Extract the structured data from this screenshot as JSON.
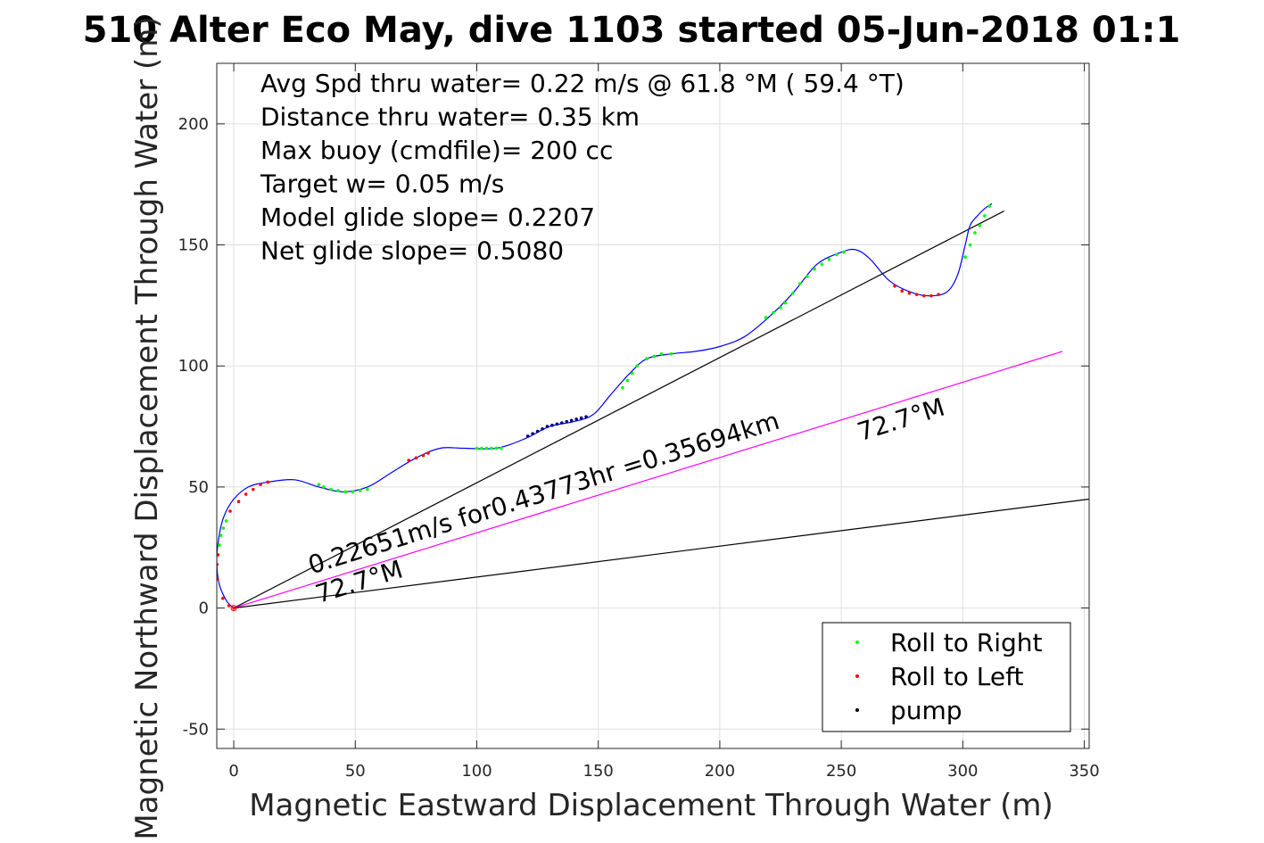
{
  "chart_data": {
    "type": "line",
    "title": "510 Alter Eco May, dive 1103 started 05-Jun-2018 01:1",
    "xlabel": "Magnetic Eastward Displacement Through Water (m)",
    "ylabel": "Magnetic Northward Displacement Through Water (m)",
    "xlim": [
      -7,
      352
    ],
    "ylim": [
      -58,
      225
    ],
    "xticks": [
      0,
      50,
      100,
      150,
      200,
      250,
      300,
      350
    ],
    "yticks": [
      -50,
      0,
      50,
      100,
      150,
      200
    ],
    "grid": true,
    "legend_position": "bottom-right",
    "colors": {
      "track": "#0000ff",
      "roll_right": "#00ff00",
      "roll_left": "#ff0000",
      "pump": "#000080",
      "reference_lines": "#000000",
      "heading_line": "#ff00ff"
    },
    "annotations": [
      "Avg Spd thru water=  0.22 m/s @  61.8 °M ( 59.4 °T)",
      "Distance thru water=  0.35 km",
      "Max buoy (cmdfile)= 200 cc",
      "Target w= 0.05 m/s",
      "Model glide slope= 0.2207",
      "Net glide slope= 0.5080"
    ],
    "line_labels": [
      {
        "text": "0.22651m/s for0.43773hr =0.35694km",
        "x": 32,
        "y": 14,
        "angle_deg": 17.3
      },
      {
        "text": "72.7°M",
        "x": 35,
        "y": 2,
        "angle_deg": 17.3
      },
      {
        "text": "72.7°M",
        "x": 258,
        "y": 69,
        "angle_deg": 17.3
      }
    ],
    "reference_lines": [
      {
        "name": "net track line",
        "x": [
          0,
          317
        ],
        "y": [
          0,
          164
        ]
      },
      {
        "name": "heading line",
        "x": [
          0,
          341
        ],
        "y": [
          0,
          106
        ]
      },
      {
        "name": "glide slope line",
        "x": [
          0,
          352
        ],
        "y": [
          0,
          45
        ]
      }
    ],
    "track": {
      "x": [
        0,
        -3,
        -6,
        -7,
        -6,
        -4,
        0,
        6,
        14,
        25,
        35,
        45,
        55,
        65,
        75,
        85,
        95,
        108,
        120,
        130,
        140,
        148,
        155,
        163,
        170,
        180,
        190,
        200,
        210,
        220,
        230,
        240,
        250,
        256,
        262,
        270,
        280,
        288,
        294,
        298,
        301,
        303,
        306,
        309,
        312
      ],
      "y": [
        0,
        3,
        10,
        20,
        30,
        38,
        45,
        50,
        52,
        53,
        50,
        48,
        50,
        56,
        62,
        66,
        66,
        66,
        70,
        75,
        77,
        80,
        88,
        97,
        103,
        105,
        106,
        108,
        112,
        120,
        130,
        142,
        147,
        148,
        144,
        135,
        130,
        129,
        131,
        138,
        150,
        158,
        162,
        165,
        167
      ]
    },
    "series": [
      {
        "name": "Roll to Right",
        "marker_color": "#00ff00",
        "x": [
          -5.9,
          -5.3,
          -4.3,
          -3.1,
          35,
          37,
          40,
          43,
          46,
          49,
          52,
          55,
          100,
          102,
          104,
          106,
          108,
          110,
          160,
          162,
          164,
          166,
          170,
          173,
          176,
          180,
          219,
          222,
          225,
          227,
          230,
          233,
          236,
          239,
          242,
          245,
          248,
          251,
          301,
          303,
          305,
          307,
          309,
          311
        ],
        "y": [
          26,
          30,
          33,
          36,
          51,
          50,
          49,
          48.5,
          48,
          48,
          48.5,
          49,
          66,
          66,
          66,
          66,
          66,
          66,
          91,
          94,
          97,
          100,
          103,
          104,
          105,
          105,
          120,
          122,
          124,
          126,
          130,
          134,
          137,
          140,
          142,
          144,
          146,
          147,
          145,
          150,
          155,
          158,
          162,
          166
        ]
      },
      {
        "name": "Roll to Left",
        "marker_color": "#ff0000",
        "x": [
          -6.7,
          -6.9,
          -6.5,
          -4.5,
          -2,
          0,
          -1.5,
          2,
          5,
          8,
          11,
          14,
          72,
          75,
          78,
          80,
          272,
          275,
          278,
          281,
          284,
          287,
          290
        ],
        "y": [
          12,
          18,
          22,
          4,
          1,
          0,
          40,
          44,
          47,
          49,
          51,
          52,
          61,
          62,
          63,
          64,
          133,
          131,
          130,
          129.5,
          129,
          129,
          129.5
        ]
      },
      {
        "name": "pump",
        "marker_color": "#000000",
        "x": [
          121,
          123,
          125,
          127,
          129,
          131,
          133,
          135,
          137,
          139,
          141,
          143,
          145
        ],
        "y": [
          71,
          72,
          73,
          74,
          75,
          75.5,
          76,
          76.5,
          77,
          77.5,
          78,
          78.5,
          79
        ]
      }
    ]
  }
}
